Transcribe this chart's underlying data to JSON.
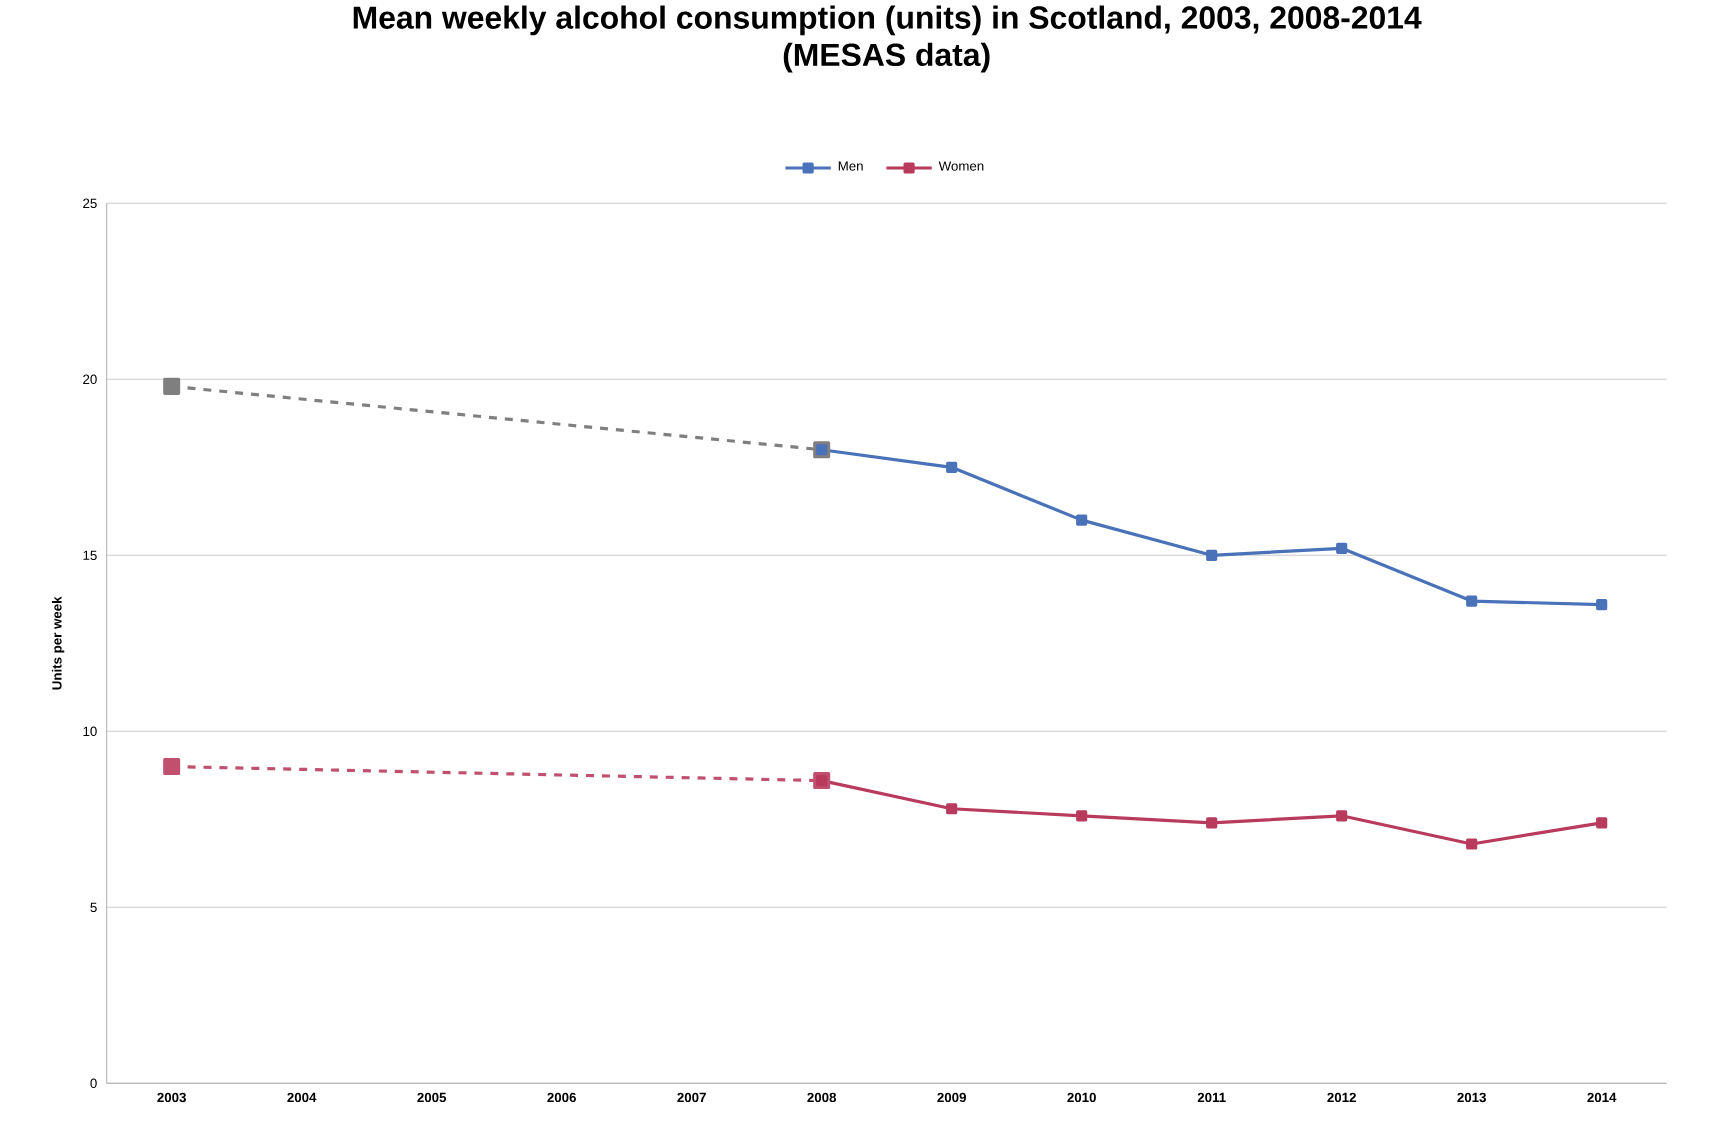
{
  "chart_data": {
    "type": "line",
    "title": "Mean weekly alcohol consumption (units) in Scotland, 2003, 2008-2014\n(MESAS data)",
    "ylabel": "Units per week",
    "categories": [
      "2003",
      "2004",
      "2005",
      "2006",
      "2007",
      "2008",
      "2009",
      "2010",
      "2011",
      "2012",
      "2013",
      "2014"
    ],
    "series": [
      {
        "color": "#7f7f7f",
        "line_style": "dashed",
        "values": [
          19.8,
          null,
          null,
          null,
          null,
          18.0,
          null,
          null,
          null,
          null,
          null,
          null
        ]
      },
      {
        "color": "#c0506e",
        "line_style": "dashed",
        "values": [
          9.0,
          null,
          null,
          null,
          null,
          8.6,
          null,
          null,
          null,
          null,
          null,
          null
        ]
      },
      {
        "name": "Men",
        "color": "#4a72b8",
        "values": [
          null,
          null,
          null,
          null,
          null,
          18.0,
          17.5,
          16.0,
          15.0,
          15.2,
          13.7,
          13.6
        ]
      },
      {
        "name": "Women",
        "color": "#b83a5c",
        "values": [
          null,
          null,
          null,
          null,
          null,
          8.6,
          7.8,
          7.6,
          7.4,
          7.6,
          6.8,
          7.4
        ]
      }
    ],
    "ylim": [
      0,
      25
    ],
    "yticks": [
      0,
      5,
      10,
      15,
      20,
      25
    ],
    "grid": "y",
    "legend": "top",
    "marker": "square",
    "line_style": "solid"
  }
}
